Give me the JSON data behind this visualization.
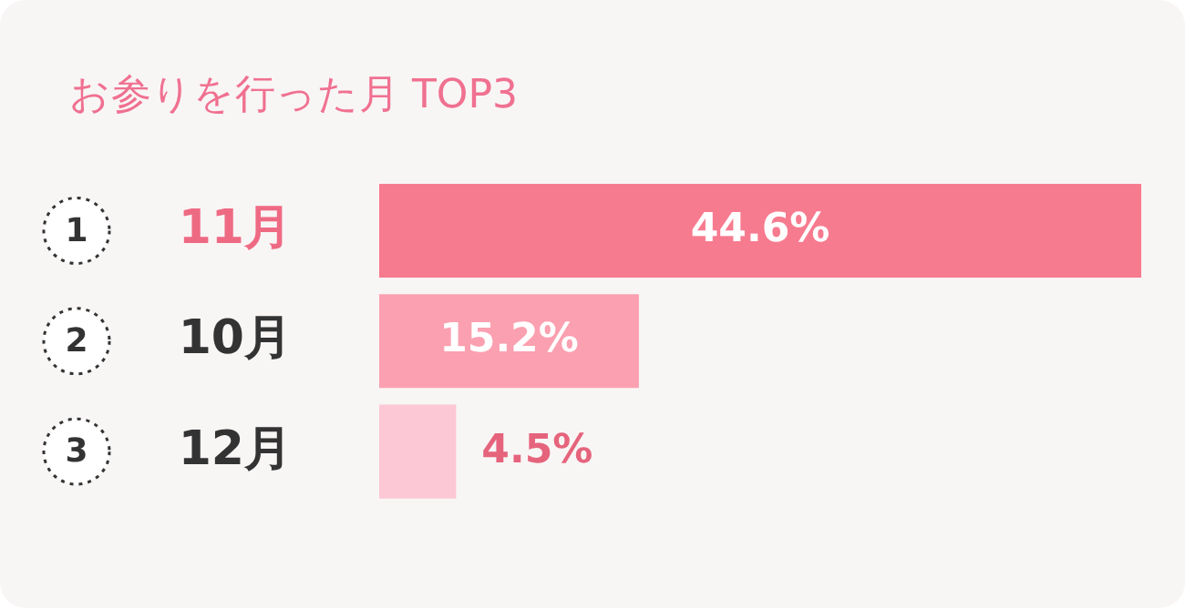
{
  "chart_data": {
    "type": "bar",
    "orientation": "horizontal",
    "title": "お参りを行った月 TOP3",
    "categories": [
      "11月",
      "10月",
      "12月"
    ],
    "values": [
      44.6,
      15.2,
      4.5
    ],
    "colors": [
      "#f77b8f",
      "#fba0b0",
      "#fdc8d5"
    ],
    "value_labels": [
      "44.6%",
      "15.2%",
      "4.5%"
    ],
    "annotations": [
      "1",
      "2",
      "3"
    ],
    "legend": false
  }
}
